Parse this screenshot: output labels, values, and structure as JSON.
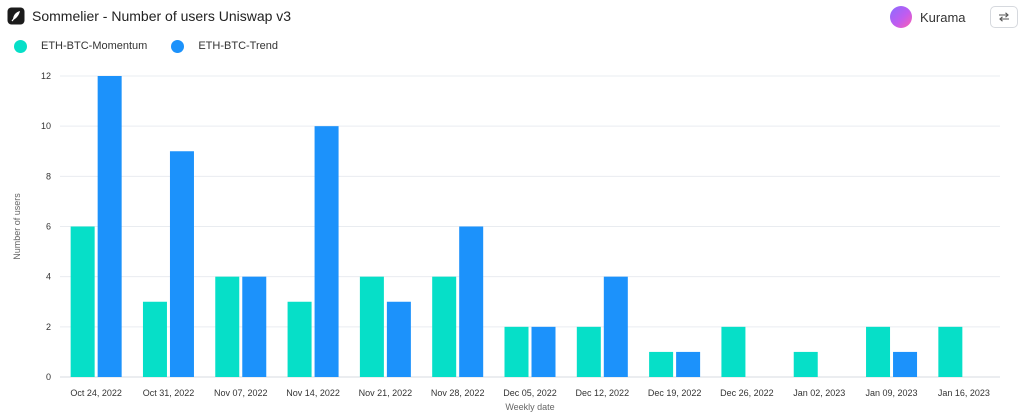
{
  "header": {
    "title": "Sommelier - Number of users Uniswap v3",
    "user_name": "Kurama",
    "logo_icon": "sommelier-logo-icon",
    "swap_icon": "swap-arrows-icon"
  },
  "colors": {
    "momentum": "#06dfc8",
    "trend": "#1c92fb",
    "grid": "#e9ecf0"
  },
  "chart_data": {
    "type": "bar",
    "xlabel": "Weekly date",
    "ylabel": "Number of users",
    "ylim": [
      0,
      12
    ],
    "yticks": [
      0,
      2,
      4,
      6,
      8,
      10,
      12
    ],
    "grid": true,
    "legend_position": "top-left",
    "categories": [
      "Oct 24, 2022",
      "Oct 31, 2022",
      "Nov 07, 2022",
      "Nov 14, 2022",
      "Nov 21, 2022",
      "Nov 28, 2022",
      "Dec 05, 2022",
      "Dec 12, 2022",
      "Dec 19, 2022",
      "Dec 26, 2022",
      "Jan 02, 2023",
      "Jan 09, 2023",
      "Jan 16, 2023"
    ],
    "series": [
      {
        "name": "ETH-BTC-Momentum",
        "color": "#06dfc8",
        "values": [
          6,
          3,
          4,
          3,
          4,
          4,
          2,
          2,
          1,
          2,
          1,
          2,
          2
        ]
      },
      {
        "name": "ETH-BTC-Trend",
        "color": "#1c92fb",
        "values": [
          12,
          9,
          4,
          10,
          3,
          6,
          2,
          4,
          1,
          null,
          null,
          1,
          null
        ]
      }
    ]
  }
}
